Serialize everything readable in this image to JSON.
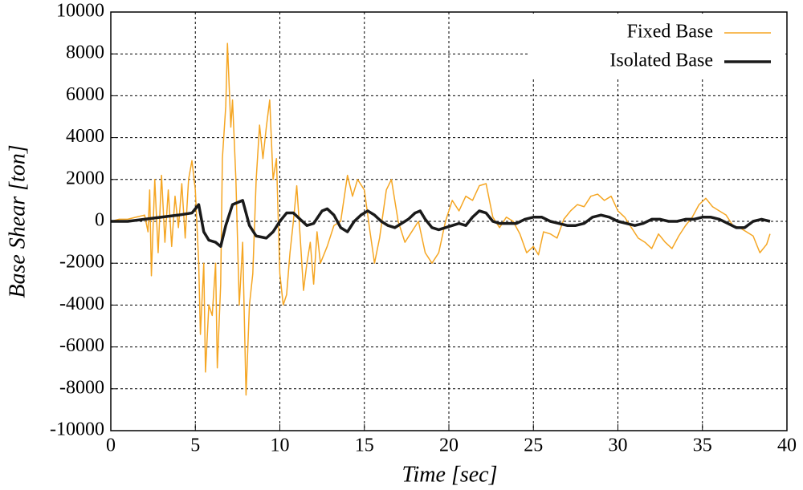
{
  "chart_data": {
    "type": "line",
    "xlabel": "Time [sec]",
    "ylabel": "Base Shear [ton]",
    "xlim": [
      0,
      40
    ],
    "ylim": [
      -10000,
      10000
    ],
    "xticks": [
      0,
      5,
      10,
      15,
      20,
      25,
      30,
      35,
      40
    ],
    "yticks": [
      -10000,
      -8000,
      -6000,
      -4000,
      -2000,
      0,
      2000,
      4000,
      6000,
      8000,
      10000
    ],
    "grid": true,
    "legend": "upper right",
    "series": [
      {
        "name": "Fixed Base",
        "color": "#f5a623",
        "width": 1.5,
        "x": [
          0,
          0.5,
          1,
          1.5,
          2,
          2.2,
          2.3,
          2.4,
          2.6,
          2.8,
          3.0,
          3.2,
          3.4,
          3.6,
          3.8,
          4.0,
          4.2,
          4.4,
          4.6,
          4.8,
          5.0,
          5.2,
          5.3,
          5.5,
          5.6,
          5.8,
          6.0,
          6.2,
          6.3,
          6.5,
          6.6,
          6.8,
          6.9,
          7.1,
          7.2,
          7.4,
          7.6,
          7.8,
          8.0,
          8.2,
          8.4,
          8.6,
          8.8,
          9.0,
          9.2,
          9.4,
          9.6,
          9.8,
          10.0,
          10.2,
          10.4,
          10.6,
          10.8,
          11.0,
          11.2,
          11.4,
          11.6,
          11.8,
          12.0,
          12.2,
          12.4,
          12.8,
          13.2,
          13.6,
          14.0,
          14.3,
          14.6,
          15.0,
          15.3,
          15.6,
          15.9,
          16.3,
          16.6,
          17.0,
          17.4,
          17.8,
          18.2,
          18.6,
          19.0,
          19.4,
          19.8,
          20.2,
          20.6,
          21.0,
          21.4,
          21.8,
          22.2,
          22.6,
          23.0,
          23.4,
          23.8,
          24.2,
          24.6,
          25.0,
          25.3,
          25.6,
          26.0,
          26.4,
          26.8,
          27.2,
          27.6,
          28.0,
          28.4,
          28.8,
          29.2,
          29.6,
          30.0,
          30.4,
          30.8,
          31.2,
          31.6,
          32.0,
          32.4,
          32.8,
          33.2,
          33.6,
          34.0,
          34.4,
          34.8,
          35.2,
          35.6,
          36.0,
          36.4,
          36.8,
          37.2,
          37.6,
          38.0,
          38.4,
          38.8,
          39.0
        ],
        "values": [
          0,
          100,
          100,
          200,
          300,
          -500,
          1500,
          -2600,
          2000,
          -1500,
          2200,
          -1000,
          1500,
          -1200,
          1200,
          -300,
          1800,
          -800,
          2000,
          2900,
          1500,
          -2000,
          -5400,
          -2000,
          -7200,
          -4000,
          -4500,
          -2000,
          -7000,
          -3000,
          3000,
          5500,
          8500,
          4500,
          5800,
          2000,
          -4000,
          -1000,
          -8300,
          -4000,
          -2500,
          2000,
          4600,
          3000,
          4500,
          5800,
          2000,
          3000,
          -2500,
          -4000,
          -3500,
          -1500,
          0,
          1700,
          -700,
          -3300,
          -2000,
          -1000,
          -3000,
          -500,
          -2000,
          -1200,
          -200,
          0,
          2200,
          1200,
          2000,
          1500,
          -300,
          -2000,
          -800,
          1500,
          2000,
          0,
          -1000,
          -500,
          0,
          -1500,
          -2000,
          -1500,
          0,
          1000,
          500,
          1200,
          1000,
          1700,
          1800,
          200,
          -300,
          200,
          0,
          -600,
          -1500,
          -1200,
          -1600,
          -500,
          -600,
          -800,
          100,
          500,
          800,
          700,
          1200,
          1300,
          1000,
          1200,
          500,
          200,
          -300,
          -800,
          -1000,
          -1300,
          -600,
          -1000,
          -1300,
          -700,
          -200,
          200,
          800,
          1100,
          700,
          500,
          300,
          -200,
          -300,
          -500,
          -700,
          -1500,
          -1100,
          -600
        ]
      },
      {
        "name": "Isolated Base",
        "color": "#1a1a1a",
        "width": 3.5,
        "x": [
          0,
          1,
          2,
          3,
          4,
          4.8,
          5.2,
          5.5,
          5.8,
          6.2,
          6.5,
          6.8,
          7.2,
          7.8,
          8.2,
          8.6,
          9.2,
          9.6,
          10.0,
          10.4,
          10.8,
          11.2,
          11.6,
          12.0,
          12.5,
          12.8,
          13.2,
          13.6,
          14.0,
          14.4,
          14.8,
          15.2,
          15.6,
          16.0,
          16.4,
          16.8,
          17.2,
          17.6,
          18.0,
          18.3,
          18.6,
          19.0,
          19.4,
          19.8,
          20.2,
          20.6,
          21.0,
          21.4,
          21.8,
          22.2,
          22.6,
          23.0,
          23.5,
          24.0,
          24.5,
          25.0,
          25.5,
          26.0,
          26.5,
          27.0,
          27.5,
          28.0,
          28.5,
          29.0,
          29.5,
          30.0,
          30.5,
          31.0,
          31.5,
          32.0,
          32.5,
          33.0,
          33.5,
          34.0,
          34.5,
          35.0,
          35.5,
          36.0,
          36.5,
          37.0,
          37.5,
          38.0,
          38.5,
          39.0
        ],
        "values": [
          0,
          0,
          100,
          200,
          300,
          400,
          800,
          -500,
          -900,
          -1000,
          -1200,
          -200,
          800,
          1000,
          -200,
          -700,
          -800,
          -500,
          0,
          400,
          400,
          100,
          -200,
          -100,
          500,
          600,
          300,
          -300,
          -500,
          0,
          300,
          500,
          300,
          0,
          -200,
          -300,
          -100,
          100,
          400,
          500,
          100,
          -300,
          -400,
          -300,
          -200,
          -100,
          -200,
          200,
          500,
          400,
          0,
          -100,
          -100,
          -100,
          100,
          200,
          200,
          0,
          -100,
          -200,
          -200,
          -100,
          200,
          300,
          200,
          0,
          -100,
          -200,
          -100,
          100,
          100,
          0,
          0,
          100,
          100,
          200,
          200,
          100,
          -100,
          -300,
          -300,
          0,
          100,
          0
        ]
      }
    ]
  }
}
